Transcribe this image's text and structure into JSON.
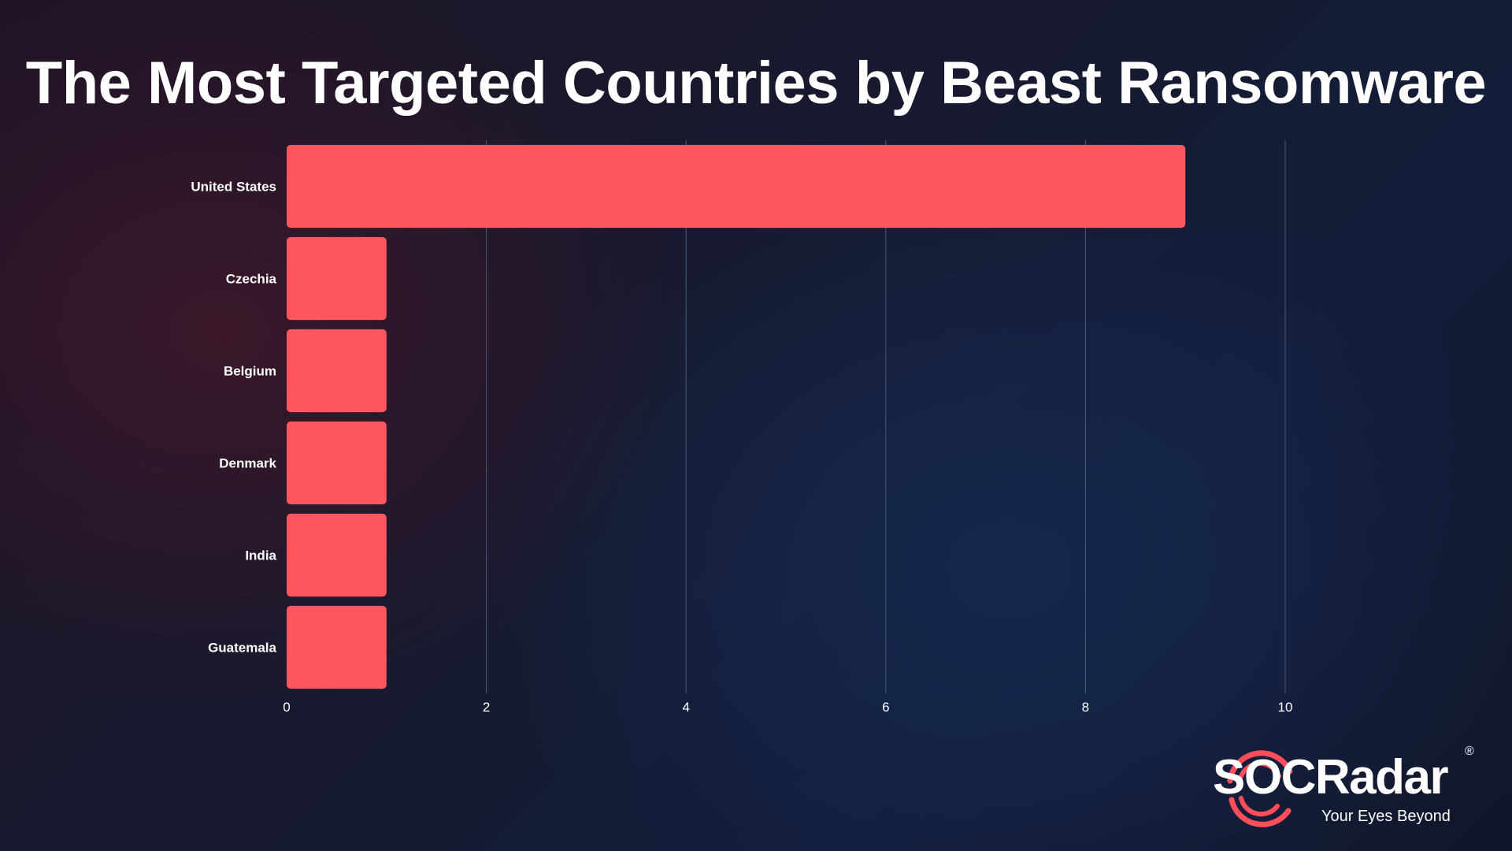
{
  "chart_data": {
    "type": "bar",
    "orientation": "horizontal",
    "title": "The Most Targeted Countries by Beast Ransomware",
    "categories": [
      "United States",
      "Czechia",
      "Belgium",
      "Denmark",
      "India",
      "Guatemala"
    ],
    "values": [
      9,
      1,
      1,
      1,
      1,
      1
    ],
    "xlim": [
      0,
      10
    ],
    "xticks": [
      "0",
      "2",
      "4",
      "6",
      "8",
      "10"
    ],
    "grid": true,
    "bar_color": "#ff5660",
    "grid_color": "#4a5a78"
  },
  "brand": {
    "name": "SOCRadar",
    "tagline": "Your Eyes Beyond",
    "registered_mark": "®",
    "accent_color": "#ff4d5a"
  }
}
